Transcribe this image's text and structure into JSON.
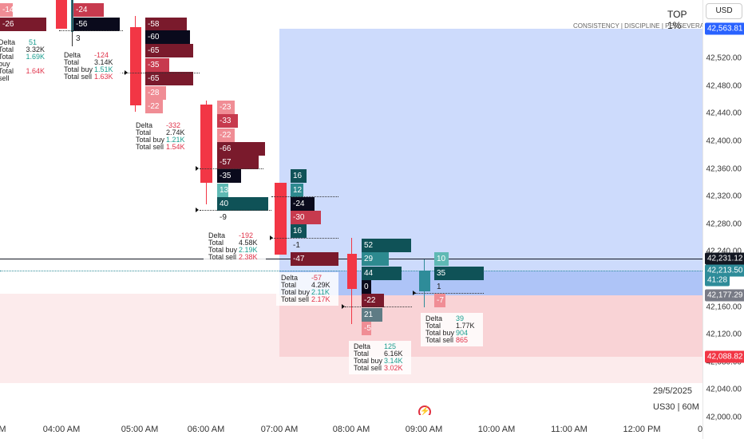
{
  "header": {
    "currency": "USD",
    "title": "TOP 1%",
    "motto": "CONSISTENCY  |  DISCIPLINE  |  PERSEVERANCE"
  },
  "footer": {
    "date": "29/5/2025",
    "symbol": "US30 | 60M"
  },
  "colors": {
    "buy_dark": "#0f5257",
    "buy_mid": "#2d8a8f",
    "buy_light": "#5fb9b4",
    "sell_dark": "#7a1a2c",
    "sell_mid": "#c73a4e",
    "sell_light": "#f08d95",
    "neutral": "#0a0a1c",
    "supply_zone": "#c9d8fb",
    "demand_zone": "#fadadd",
    "candle_bear": "#f23645",
    "candle_bull": "#2e8c99"
  },
  "y_axis": {
    "ticks": [
      "42,520.00",
      "42,480.00",
      "42,440.00",
      "42,400.00",
      "42,360.00",
      "42,320.00",
      "42,280.00",
      "42,240.00",
      "42,160.00",
      "42,120.00",
      "42,080.00",
      "42,040.00",
      "42,000.00"
    ],
    "price_tags": [
      {
        "label": "42,563.81",
        "color": "#2962ff"
      },
      {
        "label": "42,231.12",
        "color": "#131722"
      },
      {
        "label": "42,213.50",
        "color": "#2e8c99"
      },
      {
        "label": "41:28",
        "color": "#2e8c99"
      },
      {
        "label": "42,177.29",
        "color": "#787b86"
      },
      {
        "label": "42,088.82",
        "color": "#f23645"
      }
    ]
  },
  "x_axis": {
    "ticks": [
      "04:00 AM",
      "05:00 AM",
      "06:00 AM",
      "07:00 AM",
      "08:00 AM",
      "09:00 AM",
      "10:00 AM",
      "11:00 AM",
      "12:00 PM"
    ],
    "edge_left": "M",
    "edge_right": "0"
  },
  "footprint": {
    "c1": [
      "-14",
      "-26"
    ],
    "c2": [
      "-24",
      "-56",
      "3"
    ],
    "c3": [
      "-58",
      "-60",
      "-65",
      "-35",
      "-65",
      "-28",
      "-22"
    ],
    "c4": [
      "-23",
      "-33",
      "-22",
      "-66",
      "-57",
      "-35",
      "13",
      "40",
      "-9"
    ],
    "c5": [
      "16",
      "12",
      "-24",
      "-30",
      "16",
      "-1",
      "-47"
    ],
    "c6": [
      "52",
      "29",
      "44",
      "0",
      "-22",
      "21",
      "-5"
    ],
    "c7": [
      "10",
      "35",
      "1",
      "-7"
    ]
  },
  "stats": {
    "s1": {
      "delta": "51",
      "total": "3.32K",
      "buy": "1.69K",
      "sell": "1.64K"
    },
    "s2": {
      "delta": "-124",
      "total": "3.14K",
      "buy": "1.51K",
      "sell": "1.63K"
    },
    "s3": {
      "delta": "-332",
      "total": "2.74K",
      "buy": "1.21K",
      "sell": "1.54K"
    },
    "s4": {
      "delta": "-192",
      "total": "4.58K",
      "buy": "2.19K",
      "sell": "2.38K"
    },
    "s5": {
      "delta": "-57",
      "total": "4.29K",
      "buy": "2.11K",
      "sell": "2.17K"
    },
    "s6": {
      "delta": "125",
      "total": "6.16K",
      "buy": "3.14K",
      "sell": "3.02K"
    },
    "s7": {
      "delta": "39",
      "total": "1.77K",
      "buy": "904",
      "sell": "865"
    }
  },
  "labels": {
    "delta": "Delta",
    "total": "Total",
    "total_buy": "Total buy",
    "total_sell": "Total sell"
  }
}
